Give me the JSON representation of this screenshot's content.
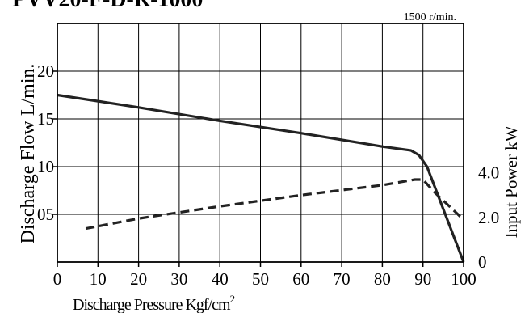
{
  "chart_data": {
    "type": "line",
    "title_fragment": "PVV20-F-D-R-1000****",
    "speed_note": "1500 r/min.",
    "xlabel": "Discharge Pressure Kgf/cm",
    "xlabel_superscript": "2",
    "ylabel_left": "Discharge Flow L/min.",
    "ylabel_right": "Input Power kW",
    "xlim": [
      0,
      100
    ],
    "ylim_left": [
      0,
      25
    ],
    "ylim_right": [
      0,
      10.7
    ],
    "x_ticks": [
      "0",
      "10",
      "20",
      "30",
      "40",
      "50",
      "60",
      "70",
      "80",
      "90",
      "100"
    ],
    "y_ticks_left": [
      {
        "value": 5,
        "label": "05"
      },
      {
        "value": 10,
        "label": "10"
      },
      {
        "value": 15,
        "label": "15"
      },
      {
        "value": 20,
        "label": "20"
      }
    ],
    "y_ticks_right": [
      {
        "value": 0,
        "label": "0"
      },
      {
        "value": 2.0,
        "label": "2.0"
      },
      {
        "value": 4.0,
        "label": "4.0"
      }
    ],
    "grid": true,
    "series": [
      {
        "axis": "left",
        "style": "solid",
        "points": [
          [
            0,
            17.5
          ],
          [
            20,
            16.2
          ],
          [
            40,
            14.8
          ],
          [
            60,
            13.5
          ],
          [
            80,
            12.1
          ],
          [
            87,
            11.7
          ],
          [
            89,
            11.2
          ],
          [
            91,
            10.0
          ],
          [
            100,
            0
          ]
        ]
      },
      {
        "axis": "right",
        "style": "dashed",
        "points": [
          [
            7,
            1.5
          ],
          [
            20,
            1.95
          ],
          [
            40,
            2.5
          ],
          [
            60,
            3.0
          ],
          [
            80,
            3.45
          ],
          [
            88,
            3.7
          ],
          [
            90,
            3.7
          ],
          [
            93,
            3.1
          ],
          [
            100,
            1.9
          ]
        ]
      }
    ]
  }
}
